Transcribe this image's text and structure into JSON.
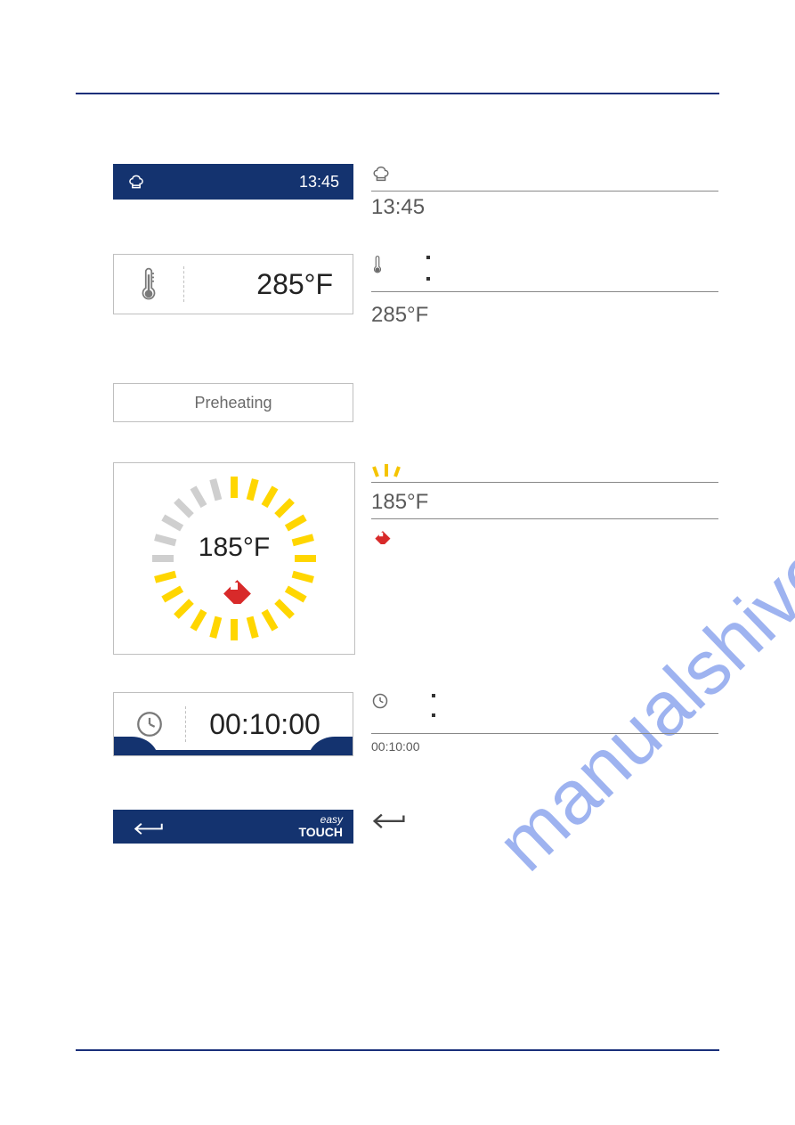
{
  "watermark_text": "manualshive.com",
  "rules": {
    "color": "#1a2f7a"
  },
  "status_bar": {
    "bg": "#14336f",
    "time": "13:45"
  },
  "right_status": {
    "time": "13:45"
  },
  "set_temp": {
    "value": "285°F",
    "right_value": "285°F"
  },
  "preheating_label": "Preheating",
  "gauge": {
    "center_value": "185°F",
    "right_value": "185°F",
    "active_color": "#ffd600",
    "inactive_color": "#cfcfcf",
    "total_ticks": 24,
    "active_ticks": 18
  },
  "timer": {
    "value": "00:10:00",
    "right_value": "00:10:00"
  },
  "back_bar": {
    "bg": "#14336f",
    "brand_line1": "easy",
    "brand_line2": "TOUCH"
  }
}
